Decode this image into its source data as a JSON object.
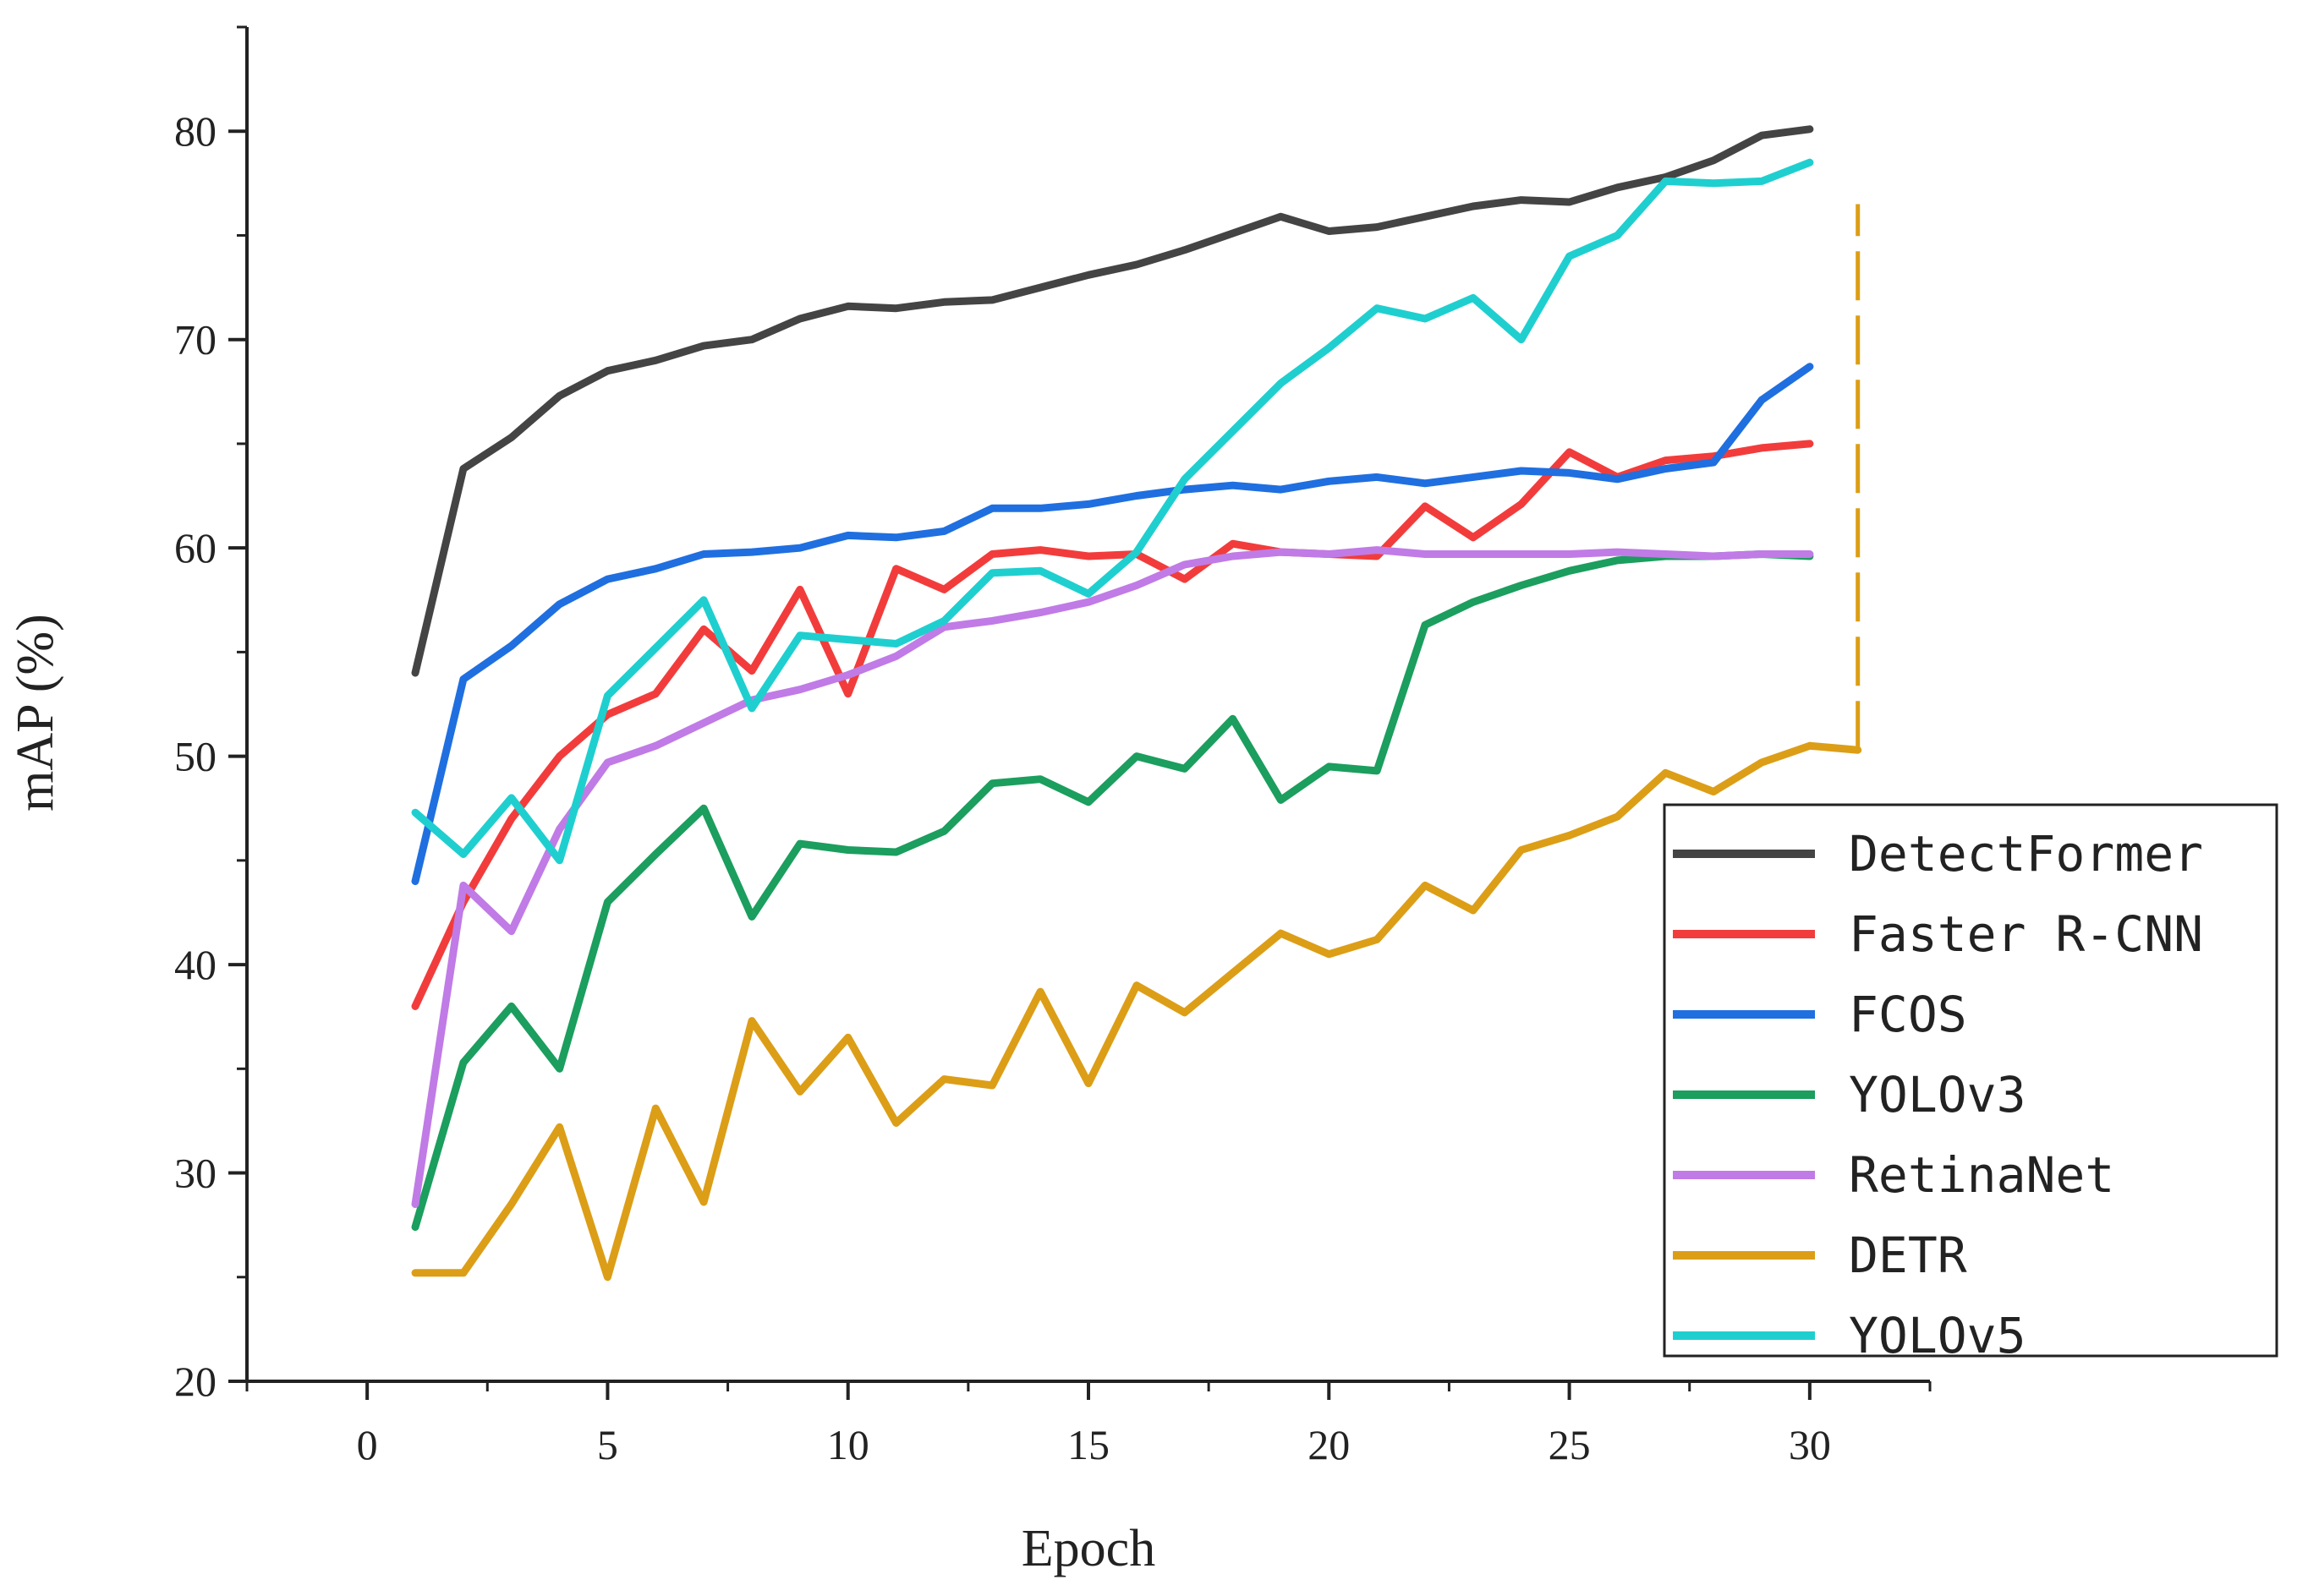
{
  "chart_data": {
    "type": "line",
    "title": "",
    "xlabel": "Epoch",
    "ylabel": "mAP (%)",
    "xlim": [
      -2.5,
      32.5
    ],
    "ylim": [
      20,
      85
    ],
    "xticks": [
      0,
      5,
      10,
      15,
      20,
      25,
      30
    ],
    "yticks": [
      20,
      30,
      40,
      50,
      60,
      70,
      80
    ],
    "xtick_labels": [
      "0",
      "5",
      "10",
      "15",
      "20",
      "25",
      "30"
    ],
    "ytick_labels": [
      "20",
      "30",
      "40",
      "50",
      "60",
      "70",
      "80"
    ],
    "grid": false,
    "legend_position": "bottom-right",
    "x": [
      1,
      2,
      3,
      4,
      5,
      6,
      7,
      8,
      9,
      10,
      11,
      12,
      13,
      14,
      15,
      16,
      17,
      18,
      19,
      20,
      21,
      22,
      23,
      24,
      25,
      26,
      27,
      28,
      29,
      30
    ],
    "series": [
      {
        "name": "DetectFormer",
        "color": "#444444",
        "values": [
          54.0,
          63.8,
          65.3,
          67.3,
          68.5,
          69.0,
          69.7,
          70.0,
          71.0,
          71.6,
          71.5,
          71.8,
          71.9,
          72.5,
          73.1,
          73.6,
          74.3,
          75.1,
          75.9,
          75.2,
          75.4,
          75.9,
          76.4,
          76.7,
          76.6,
          77.3,
          77.8,
          78.6,
          79.8,
          80.1
        ]
      },
      {
        "name": "Faster R-CNN",
        "color": "#f23c3c",
        "values": [
          38.0,
          43.0,
          47.0,
          50.0,
          52.0,
          53.0,
          56.1,
          54.1,
          58.0,
          53.0,
          59.0,
          58.0,
          59.7,
          59.9,
          59.6,
          59.7,
          58.5,
          60.2,
          59.8,
          59.7,
          59.6,
          62.0,
          60.5,
          62.1,
          64.6,
          63.4,
          64.2,
          64.4,
          64.8,
          65.0
        ]
      },
      {
        "name": "FCOS",
        "color": "#1f6fe0",
        "values": [
          44.0,
          53.7,
          55.3,
          57.3,
          58.5,
          59.0,
          59.7,
          59.8,
          60.0,
          60.6,
          60.5,
          60.8,
          61.9,
          61.9,
          62.1,
          62.5,
          62.8,
          63.0,
          62.8,
          63.2,
          63.4,
          63.1,
          63.4,
          63.7,
          63.6,
          63.3,
          63.8,
          64.1,
          67.1,
          68.7
        ]
      },
      {
        "name": "YOLOv3",
        "color": "#1b9e5e",
        "values": [
          27.4,
          35.3,
          38.0,
          35.0,
          43.0,
          45.3,
          47.5,
          42.3,
          45.8,
          45.5,
          45.4,
          46.4,
          48.7,
          48.9,
          47.8,
          50.0,
          49.4,
          51.8,
          47.9,
          49.5,
          49.3,
          56.3,
          57.4,
          58.2,
          58.9,
          59.4,
          59.6,
          59.6,
          59.7,
          59.6
        ]
      },
      {
        "name": "RetinaNet",
        "color": "#c07be6",
        "values": [
          28.5,
          43.8,
          41.6,
          46.5,
          49.7,
          50.5,
          51.6,
          52.7,
          53.2,
          53.9,
          54.8,
          56.2,
          56.5,
          56.9,
          57.4,
          58.2,
          59.2,
          59.6,
          59.8,
          59.7,
          59.9,
          59.7,
          59.7,
          59.7,
          59.7,
          59.8,
          59.7,
          59.6,
          59.7,
          59.7
        ]
      },
      {
        "name": "DETR",
        "color": "#dc9e17",
        "values": [
          25.2,
          25.2,
          28.5,
          32.2,
          25.0,
          33.1,
          28.6,
          37.3,
          33.9,
          36.5,
          32.4,
          34.5,
          34.2,
          38.7,
          34.3,
          39.0,
          37.7,
          39.6,
          41.5,
          40.5,
          41.2,
          43.8,
          42.6,
          45.5,
          46.2,
          47.1,
          49.2,
          48.3,
          49.7,
          50.5
        ]
      },
      {
        "name": "YOLOv5",
        "color": "#1fcfcf",
        "values": [
          47.3,
          45.3,
          48.0,
          45.0,
          52.9,
          55.2,
          57.5,
          52.3,
          55.8,
          55.6,
          55.4,
          56.5,
          58.8,
          58.9,
          57.8,
          59.8,
          63.3,
          65.6,
          67.9,
          69.6,
          71.5,
          71.0,
          72.0,
          70.0,
          74.0,
          75.0,
          77.6,
          77.5,
          77.6,
          78.5
        ]
      }
    ],
    "annotations": [
      {
        "type": "dashed-vertical-line",
        "x": 31,
        "y_from": 50.3,
        "y_to": 76.5,
        "color": "#dc9e17"
      }
    ]
  }
}
